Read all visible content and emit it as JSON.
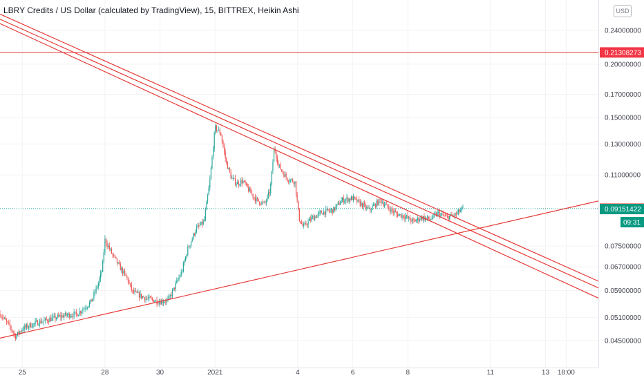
{
  "title": "LBRY Credits / US Dollar (calculated by TradingView), 15, BITTREX, Heikin Ashi",
  "currency": "USD",
  "colors": {
    "up": "#26a69a",
    "down": "#ef5350",
    "trendline": "#e53935",
    "level_tag": "#f23645",
    "last_price_tag": "#ef5350",
    "prev_close_tag": "#089981",
    "countdown_tag": "#089981"
  },
  "chart_data": {
    "type": "candlestick",
    "x_ticks": [
      {
        "label": "25",
        "day": 0
      },
      {
        "label": "28",
        "day": 3
      },
      {
        "label": "30",
        "day": 5
      },
      {
        "label": "2021",
        "day": 7
      },
      {
        "label": "4",
        "day": 10
      },
      {
        "label": "6",
        "day": 12
      },
      {
        "label": "8",
        "day": 14
      },
      {
        "label": "11",
        "day": 17
      },
      {
        "label": "13",
        "day": 19
      },
      {
        "label": "18:00",
        "day": 19.75
      }
    ],
    "y_ticks": [
      "0.24000000",
      "0.20000000",
      "0.17000000",
      "0.15000000",
      "0.13000000",
      "0.11000000",
      "0.07500000",
      "0.06700000",
      "0.05900000",
      "0.05100000",
      "0.04500000"
    ],
    "ylim": [
      0.0405,
      0.265
    ],
    "xlim_days": [
      -0.81,
      20.92
    ],
    "horizontal_level": 0.21308273,
    "last_price": 0.09175062,
    "prev_close": 0.09151422,
    "countdown": "09:31",
    "trendlines": [
      {
        "from": [
          -0.81,
          0.262
        ],
        "to": [
          20.92,
          0.062
        ]
      },
      {
        "from": [
          -0.81,
          0.255
        ],
        "to": [
          20.92,
          0.0598
        ]
      },
      {
        "from": [
          -0.81,
          0.249
        ],
        "to": [
          20.92,
          0.0566
        ]
      },
      {
        "from": [
          -0.81,
          0.0456
        ],
        "to": [
          20.92,
          0.0956
        ]
      }
    ],
    "price_path": [
      [
        -0.81,
        0.052
      ],
      [
        -0.45,
        0.0485
      ],
      [
        -0.25,
        0.046
      ],
      [
        0.0,
        0.048
      ],
      [
        0.5,
        0.0495
      ],
      [
        1.0,
        0.0505
      ],
      [
        1.5,
        0.0515
      ],
      [
        2.0,
        0.052
      ],
      [
        2.5,
        0.0555
      ],
      [
        2.75,
        0.061
      ],
      [
        2.9,
        0.066
      ],
      [
        3.0,
        0.0775
      ],
      [
        3.25,
        0.072
      ],
      [
        3.5,
        0.0675
      ],
      [
        3.8,
        0.063
      ],
      [
        4.0,
        0.0585
      ],
      [
        4.5,
        0.0565
      ],
      [
        5.0,
        0.0555
      ],
      [
        5.3,
        0.056
      ],
      [
        5.5,
        0.0595
      ],
      [
        5.8,
        0.0655
      ],
      [
        6.0,
        0.0735
      ],
      [
        6.3,
        0.082
      ],
      [
        6.6,
        0.0855
      ],
      [
        6.8,
        0.105
      ],
      [
        7.0,
        0.142
      ],
      [
        7.2,
        0.138
      ],
      [
        7.4,
        0.118
      ],
      [
        7.6,
        0.108
      ],
      [
        7.8,
        0.105
      ],
      [
        8.0,
        0.1065
      ],
      [
        8.2,
        0.102
      ],
      [
        8.5,
        0.096
      ],
      [
        8.8,
        0.094
      ],
      [
        9.0,
        0.101
      ],
      [
        9.15,
        0.128
      ],
      [
        9.3,
        0.116
      ],
      [
        9.6,
        0.108
      ],
      [
        9.9,
        0.106
      ],
      [
        10.05,
        0.087
      ],
      [
        10.2,
        0.083
      ],
      [
        10.5,
        0.087
      ],
      [
        10.9,
        0.09
      ],
      [
        11.3,
        0.091
      ],
      [
        11.6,
        0.096
      ],
      [
        12.0,
        0.097
      ],
      [
        12.3,
        0.094
      ],
      [
        12.6,
        0.091
      ],
      [
        13.0,
        0.096
      ],
      [
        13.3,
        0.092
      ],
      [
        13.6,
        0.089
      ],
      [
        13.9,
        0.088
      ],
      [
        14.2,
        0.0855
      ],
      [
        14.5,
        0.0875
      ],
      [
        14.8,
        0.0865
      ],
      [
        15.1,
        0.0895
      ],
      [
        15.4,
        0.0875
      ],
      [
        15.7,
        0.0885
      ],
      [
        16.0,
        0.09175062
      ]
    ]
  }
}
